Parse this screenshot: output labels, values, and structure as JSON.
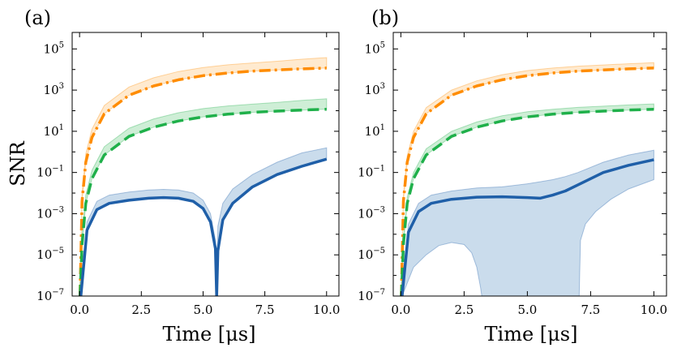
{
  "colors": {
    "blue": "#1f5fa8",
    "green": "#1fb04a",
    "orange": "#ff8c00",
    "blue_fill": "#9fbfdc",
    "green_fill": "#a6e0b4",
    "orange_fill": "#ffd9a8"
  },
  "chart_data": [
    {
      "type": "line",
      "panel_label": "(a)",
      "xlabel": "Time [μs]",
      "ylabel": "SNR",
      "yscale": "log",
      "xlim": [
        -0.3,
        10.5
      ],
      "ylim_exp": [
        -7,
        5.8
      ],
      "xticks": [
        0.0,
        2.5,
        5.0,
        7.5,
        10.0
      ],
      "xtick_labels": [
        "0.0",
        "2.5",
        "5.0",
        "7.5",
        "10.0"
      ],
      "yticks_exp": [
        -7,
        -5,
        -3,
        -1,
        1,
        3,
        5
      ],
      "ytick_label_base": "10",
      "ytick_label_exps": [
        "−7",
        "−5",
        "−3",
        "−1",
        "1",
        "3",
        "5"
      ],
      "series": [
        {
          "name": "orange",
          "style": "dashdot",
          "band": "upper",
          "x": [
            0.02,
            0.1,
            0.25,
            0.5,
            1,
            2,
            3,
            4,
            5,
            6,
            7,
            8,
            9,
            10
          ],
          "y_log10": [
            -7,
            -2.4,
            -0.5,
            0.7,
            1.85,
            2.75,
            3.2,
            3.5,
            3.7,
            3.83,
            3.92,
            3.98,
            4.03,
            4.07
          ],
          "band_upper_log10": [
            -6.5,
            -2.0,
            -0.1,
            1.1,
            2.25,
            3.15,
            3.6,
            3.9,
            4.1,
            4.23,
            4.32,
            4.4,
            4.5,
            4.58
          ]
        },
        {
          "name": "green",
          "style": "dashed",
          "band": "upper",
          "x": [
            0.02,
            0.1,
            0.25,
            0.5,
            1,
            2,
            3,
            4,
            5,
            6,
            7,
            8,
            9,
            10
          ],
          "y_log10": [
            -7,
            -4.5,
            -2.5,
            -1.3,
            -0.15,
            0.75,
            1.2,
            1.5,
            1.7,
            1.83,
            1.92,
            1.98,
            2.03,
            2.07
          ],
          "band_upper_log10": [
            -6.5,
            -4.1,
            -2.1,
            -0.9,
            0.25,
            1.15,
            1.6,
            1.9,
            2.1,
            2.23,
            2.32,
            2.4,
            2.5,
            2.58
          ]
        },
        {
          "name": "blue",
          "style": "solid",
          "band": "upper",
          "x": [
            0.05,
            0.3,
            0.7,
            1.2,
            2,
            2.8,
            3.4,
            4,
            4.6,
            5.0,
            5.3,
            5.5,
            5.55,
            5.6,
            5.8,
            6.2,
            7,
            8,
            9,
            10
          ],
          "y_log10": [
            -7,
            -3.8,
            -2.8,
            -2.5,
            -2.35,
            -2.25,
            -2.22,
            -2.25,
            -2.4,
            -2.75,
            -3.4,
            -4.7,
            -7,
            -4.8,
            -3.3,
            -2.5,
            -1.7,
            -1.1,
            -0.7,
            -0.35
          ],
          "band_upper_log10": [
            -6.6,
            -3.4,
            -2.4,
            -2.1,
            -1.95,
            -1.85,
            -1.82,
            -1.85,
            -2.0,
            -2.35,
            -3.0,
            -4.3,
            -7,
            -3.6,
            -2.5,
            -1.8,
            -1.1,
            -0.5,
            -0.05,
            0.2
          ]
        }
      ]
    },
    {
      "type": "line",
      "panel_label": "(b)",
      "xlabel": "Time [μs]",
      "ylabel": "",
      "yscale": "log",
      "xlim": [
        -0.3,
        10.5
      ],
      "ylim_exp": [
        -7,
        5.8
      ],
      "xticks": [
        0.0,
        2.5,
        5.0,
        7.5,
        10.0
      ],
      "xtick_labels": [
        "0.0",
        "2.5",
        "5.0",
        "7.5",
        "10.0"
      ],
      "yticks_exp": [
        -7,
        -5,
        -3,
        -1,
        1,
        3,
        5
      ],
      "ytick_label_base": "10",
      "ytick_label_exps": [
        "−7",
        "−5",
        "−3",
        "−1",
        "1",
        "3",
        "5"
      ],
      "series": [
        {
          "name": "orange",
          "style": "dashdot",
          "band": "upper",
          "x": [
            0.02,
            0.1,
            0.25,
            0.5,
            1,
            2,
            3,
            4,
            5,
            6,
            7,
            8,
            9,
            10
          ],
          "y_log10": [
            -7,
            -2.4,
            -0.5,
            0.7,
            1.85,
            2.75,
            3.2,
            3.5,
            3.7,
            3.83,
            3.92,
            3.98,
            4.03,
            4.07
          ],
          "band_upper_log10": [
            -6.6,
            -2.1,
            -0.2,
            1.0,
            2.15,
            3.0,
            3.45,
            3.75,
            3.95,
            4.07,
            4.16,
            4.22,
            4.28,
            4.33
          ]
        },
        {
          "name": "green",
          "style": "dashed",
          "band": "upper",
          "x": [
            0.02,
            0.1,
            0.25,
            0.5,
            1,
            2,
            3,
            4,
            5,
            6,
            7,
            8,
            9,
            10
          ],
          "y_log10": [
            -7,
            -4.5,
            -2.5,
            -1.3,
            -0.15,
            0.75,
            1.2,
            1.5,
            1.7,
            1.83,
            1.92,
            1.98,
            2.03,
            2.07
          ],
          "band_upper_log10": [
            -6.6,
            -4.2,
            -2.2,
            -1.0,
            0.15,
            1.0,
            1.45,
            1.75,
            1.95,
            2.07,
            2.16,
            2.22,
            2.28,
            2.33
          ]
        },
        {
          "name": "blue",
          "style": "solid",
          "band": "both",
          "x": [
            0.05,
            0.3,
            0.7,
            1.2,
            2,
            3,
            4,
            5,
            5.5,
            6,
            6.5,
            7,
            8,
            9,
            10
          ],
          "y_log10": [
            -7,
            -3.9,
            -2.9,
            -2.5,
            -2.3,
            -2.2,
            -2.18,
            -2.22,
            -2.25,
            -2.1,
            -1.9,
            -1.6,
            -1.0,
            -0.65,
            -0.38
          ],
          "band_upper_log10": [
            -6.6,
            -3.5,
            -2.5,
            -2.1,
            -1.9,
            -1.75,
            -1.7,
            -1.55,
            -1.45,
            -1.35,
            -1.2,
            -1.0,
            -0.5,
            -0.15,
            0.08
          ],
          "band_lower_x": [
            0.05,
            0.5,
            1,
            1.5,
            2,
            2.5,
            2.8,
            3.0,
            3.15,
            3.2,
            7.05,
            7.1,
            7.3,
            7.7,
            8.3,
            9,
            10
          ],
          "band_lower_log10": [
            -7,
            -5.6,
            -5.0,
            -4.55,
            -4.4,
            -4.5,
            -4.9,
            -5.6,
            -6.6,
            -7,
            -7,
            -4.3,
            -3.5,
            -2.9,
            -2.3,
            -1.8,
            -1.35
          ]
        }
      ]
    }
  ]
}
